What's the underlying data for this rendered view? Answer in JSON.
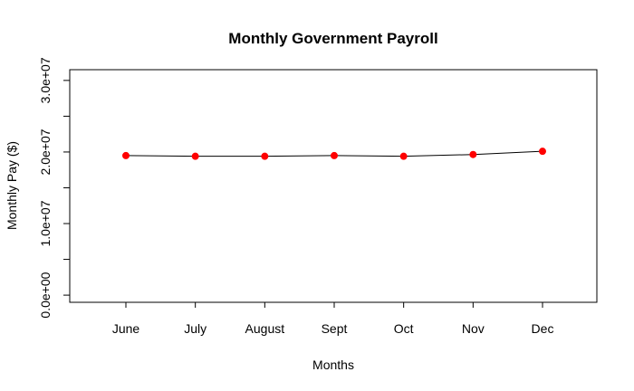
{
  "chart_data": {
    "type": "line",
    "title": "Monthly Government Payroll",
    "xlabel": "Months",
    "ylabel": "Monthly Pay ($)",
    "categories": [
      "June",
      "July",
      "August",
      "Sept",
      "Oct",
      "Nov",
      "Dec"
    ],
    "series": [
      {
        "values": [
          19500000,
          19400000,
          19400000,
          19500000,
          19400000,
          19650000,
          20100000
        ],
        "line_color": "#000000",
        "marker_color": "#ff0000"
      }
    ],
    "ylim": [
      -1000000,
      31500000
    ],
    "y_ticks": [
      0,
      5000000,
      10000000,
      15000000,
      20000000,
      25000000,
      30000000
    ],
    "y_tick_labels": [
      {
        "value": 0,
        "label": "0.0e+00"
      },
      {
        "value": 10000000,
        "label": "1.0e+07"
      },
      {
        "value": 20000000,
        "label": "2.0e+07"
      },
      {
        "value": 30000000,
        "label": "3.0e+07"
      }
    ],
    "grid": false,
    "legend": "none"
  }
}
